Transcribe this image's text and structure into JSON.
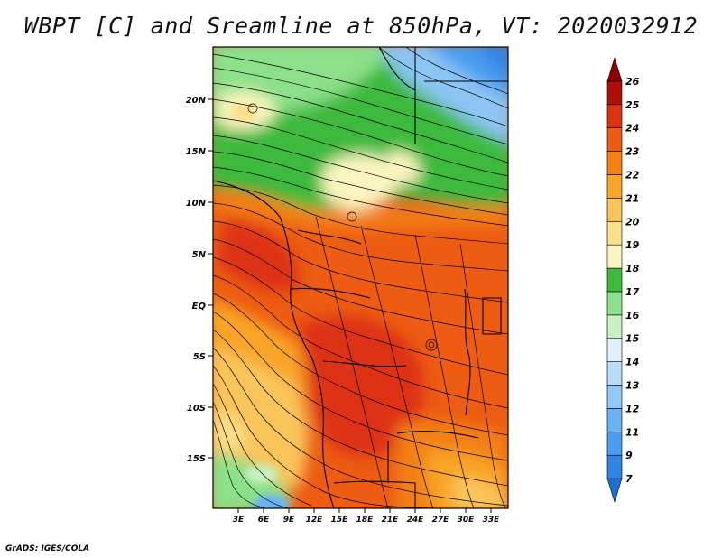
{
  "title": "WBPT [C] and Sreamline at 850hPa, VT: 2020032912",
  "footer": "GrADS: IGES/COLA",
  "map": {
    "lat_labels": [
      "20N",
      "15N",
      "10N",
      "5N",
      "EQ",
      "5S",
      "10S",
      "15S"
    ],
    "lon_labels": [
      "3E",
      "6E",
      "9E",
      "12E",
      "15E",
      "18E",
      "21E",
      "24E",
      "27E",
      "30E",
      "33E"
    ]
  },
  "colorbar": {
    "levels": [
      "7",
      "9",
      "11",
      "12",
      "13",
      "14",
      "15",
      "16",
      "17",
      "18",
      "19",
      "20",
      "21",
      "22",
      "23",
      "24",
      "25",
      "26"
    ],
    "colors": [
      "#1e6ed8",
      "#2f84e6",
      "#4a9cf0",
      "#6ab2f4",
      "#90c8f7",
      "#b8ddf9",
      "#def0fb",
      "#c8f0c0",
      "#8ce08a",
      "#3cba3c",
      "#faf5c0",
      "#fae08a",
      "#f9c55a",
      "#f8a428",
      "#f38013",
      "#ed5c12",
      "#dd3312",
      "#b20e08",
      "#8c0000"
    ]
  }
}
